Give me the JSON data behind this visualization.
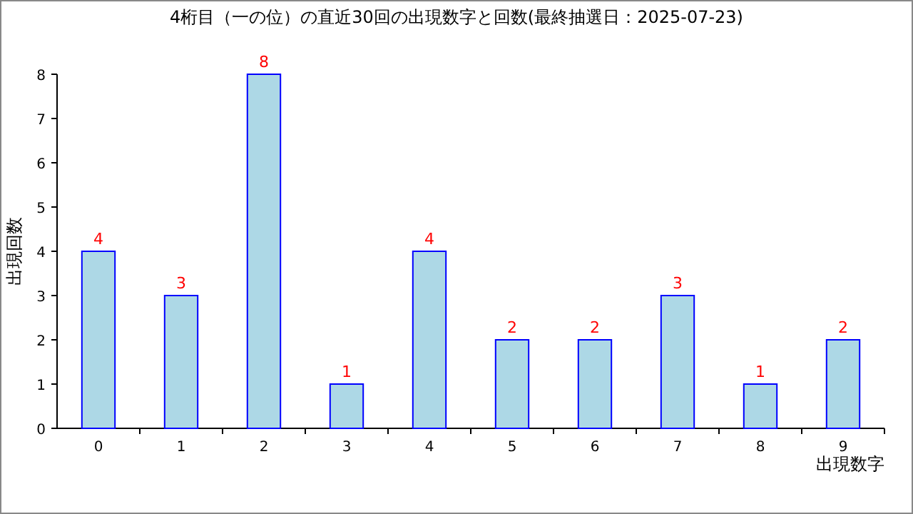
{
  "chart_data": {
    "type": "bar",
    "title": "4桁目（一の位）の直近30回の出現数字と回数(最終抽選日：2025-07-23)",
    "xlabel": "出現数字",
    "ylabel": "出現回数",
    "categories": [
      "0",
      "1",
      "2",
      "3",
      "4",
      "5",
      "6",
      "7",
      "8",
      "9"
    ],
    "values": [
      4,
      3,
      8,
      1,
      4,
      2,
      2,
      3,
      1,
      2
    ],
    "color": "#add8e6",
    "ylim": [
      0,
      8
    ],
    "yticks": [
      0,
      1,
      2,
      3,
      4,
      5,
      6,
      7,
      8
    ],
    "data_labels": true
  }
}
